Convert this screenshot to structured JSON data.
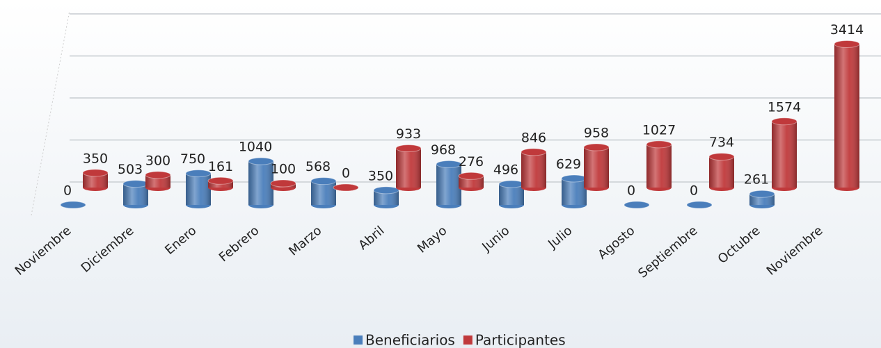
{
  "chart_data": {
    "type": "bar3d",
    "categories": [
      "Noviembre",
      "Diciembre",
      "Enero",
      "Febrero",
      "Marzo",
      "Abril",
      "Mayo",
      "Junio",
      "Julio",
      "Agosto",
      "Septiembre",
      "Octubre",
      "Noviembre"
    ],
    "series": [
      {
        "name": "Beneficiarios",
        "color": "#4a7ebb",
        "values": [
          0,
          503,
          750,
          1040,
          568,
          350,
          968,
          496,
          629,
          0,
          0,
          261,
          null
        ]
      },
      {
        "name": "Participantes",
        "color": "#c0393b",
        "values": [
          350,
          300,
          161,
          100,
          0,
          933,
          276,
          846,
          958,
          1027,
          734,
          1574,
          3414
        ]
      }
    ],
    "ylim": [
      0,
      4000
    ],
    "yticks": [
      0,
      1000,
      2000,
      3000,
      4000
    ],
    "grid": true,
    "legend": "bottom"
  }
}
